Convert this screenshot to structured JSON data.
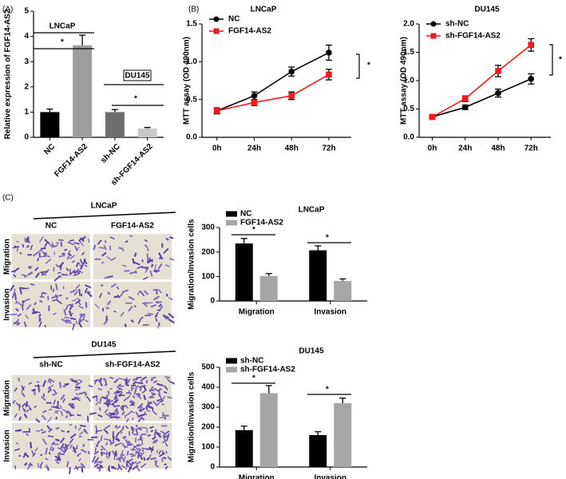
{
  "chart_data": [
    {
      "type": "bar",
      "panel": "(A)",
      "y_label": "Relative expression of FGF14-AS2",
      "categories": [
        "NC",
        "FGF14-AS2",
        "sh-NC",
        "sh-FGF14-AS2"
      ],
      "values": [
        1,
        3.65,
        1,
        0.35
      ],
      "errors": [
        0.12,
        0.4,
        0.1,
        0.04
      ],
      "colors": [
        "#000000",
        "#9e9e9e",
        "#6e6e6e",
        "#c8c8c8"
      ],
      "ylim": [
        0,
        5
      ],
      "yticks": [
        0,
        1,
        2,
        3,
        4,
        5
      ],
      "annotations": [
        "LNCaP",
        "*",
        "DU145",
        "*"
      ]
    },
    {
      "type": "line",
      "panel": "(B)",
      "title": "LNCaP",
      "y_label": "MTT assay (OD 490nm)",
      "categories": [
        "0h",
        "24h",
        "48h",
        "72h"
      ],
      "series": [
        {
          "name": "NC",
          "color": "#000000",
          "values": [
            0.35,
            0.55,
            0.87,
            1.12
          ],
          "errors": [
            0.04,
            0.05,
            0.06,
            0.1
          ]
        },
        {
          "name": "FGF14-AS2",
          "color": "#ee1c1c",
          "values": [
            0.35,
            0.46,
            0.55,
            0.83
          ],
          "errors": [
            0.03,
            0.04,
            0.05,
            0.07
          ]
        }
      ],
      "ylim": [
        0,
        1.5
      ],
      "yticks": [
        {
          "value": 0,
          "label": "0.0"
        },
        0.5,
        {
          "value": 1,
          "label": "1.0"
        },
        1.5
      ],
      "annotations": [
        "*"
      ]
    },
    {
      "type": "line",
      "title": "DU145",
      "y_label": "MTT assay (OD 490nm)",
      "categories": [
        "0h",
        "24h",
        "48h",
        "72h"
      ],
      "series": [
        {
          "name": "sh-NC",
          "color": "#000000",
          "values": [
            0.36,
            0.53,
            0.78,
            1.03
          ],
          "errors": [
            0.03,
            0.04,
            0.07,
            0.09
          ]
        },
        {
          "name": "sh-FGF14-AS2",
          "color": "#ee1c1c",
          "values": [
            0.36,
            0.68,
            1.17,
            1.63
          ],
          "errors": [
            0.03,
            0.05,
            0.1,
            0.11
          ]
        }
      ],
      "ylim": [
        0,
        2
      ],
      "yticks": [
        {
          "value": 0,
          "label": "0.0"
        },
        0.5,
        {
          "value": 1,
          "label": "1.0"
        },
        1.5,
        {
          "value": 2,
          "label": "2.0"
        }
      ],
      "annotations": [
        "*"
      ]
    },
    {
      "type": "bar",
      "title": "LNCaP",
      "y_label": "Migration/Invasion cells",
      "categories": [
        "Migration",
        "Invasion"
      ],
      "series": [
        {
          "name": "NC",
          "color": "#000000",
          "values": [
            235,
            207
          ],
          "errors": [
            20,
            18
          ]
        },
        {
          "name": "FGF14-AS2",
          "color": "#a6a6a6",
          "values": [
            102,
            82
          ],
          "errors": [
            10,
            8
          ]
        }
      ],
      "ylim": [
        0,
        300
      ],
      "yticks": [
        0,
        100,
        200,
        300
      ],
      "annotations": [
        "*",
        "*"
      ]
    },
    {
      "type": "bar",
      "title": "DU145",
      "y_label": "Migration/Invasion cells",
      "categories": [
        "Migration",
        "Invasion"
      ],
      "series": [
        {
          "name": "sh-NC",
          "color": "#000000",
          "values": [
            185,
            160
          ],
          "errors": [
            20,
            17
          ]
        },
        {
          "name": "sh-FGF14-AS2",
          "color": "#a6a6a6",
          "values": [
            370,
            320
          ],
          "errors": [
            38,
            25
          ]
        }
      ],
      "ylim": [
        0,
        500
      ],
      "yticks": [
        0,
        100,
        200,
        300,
        400,
        500
      ],
      "annotations": [
        "*",
        "*"
      ]
    }
  ],
  "images": {
    "panel": "(C)",
    "blocks": [
      {
        "title": "LNCaP",
        "columns": [
          "NC",
          "FGF14-AS2"
        ],
        "rows": [
          "Migration",
          "Invasion"
        ]
      },
      {
        "title": "DU145",
        "columns": [
          "sh-NC",
          "sh-FGF14-AS2"
        ],
        "rows": [
          "Migration",
          "Invasion"
        ]
      }
    ]
  }
}
